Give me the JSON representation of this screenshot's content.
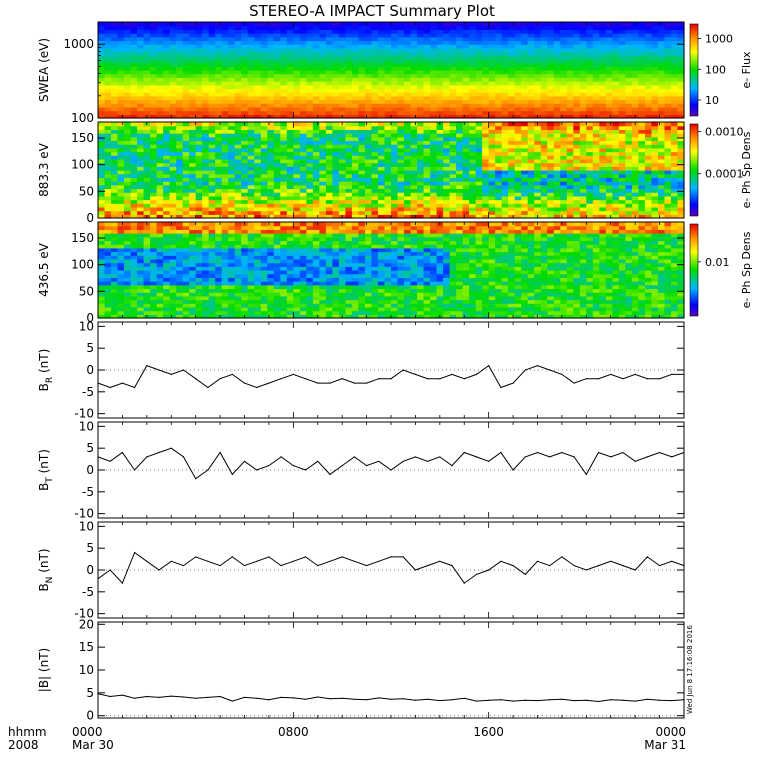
{
  "title": "STEREO-A IMPACT Summary Plot",
  "time_axis": {
    "row1_labels": [
      "hhmm",
      "0000",
      "0800",
      "1600",
      "0000"
    ],
    "row2_labels": [
      "2008",
      "Mar 30",
      "Mar 31"
    ],
    "range_hours": [
      0,
      24
    ],
    "major_ticks_hours": [
      0,
      8,
      16,
      24
    ],
    "minor_step_hours": 1
  },
  "timestamp": "Wed Jun  8 17:16:08 2016",
  "colors": {
    "axes": "#000000",
    "line": "#000000",
    "background": "#ffffff"
  },
  "chart_data": [
    {
      "type": "heatmap",
      "name": "swea",
      "ylabel": "SWEA (eV)",
      "yscale": "log",
      "ylim": [
        100,
        2000
      ],
      "yticks": [
        100,
        1000
      ],
      "ytick_labels": [
        "100",
        "1000"
      ],
      "colorbar": {
        "label": "e- Flux",
        "scale": "log",
        "range": [
          3,
          3000
        ],
        "ticks": [
          10,
          100,
          1000
        ],
        "tick_labels": [
          "10",
          "100",
          "1000"
        ]
      },
      "description_levels": {
        "energy_100_eV": 2500,
        "energy_400_eV": 100,
        "energy_2000_eV": 3
      }
    },
    {
      "type": "heatmap",
      "name": "pad_883",
      "ylabel": "883.3 eV",
      "ylim": [
        0,
        180
      ],
      "yticks": [
        0,
        50,
        100,
        150
      ],
      "ytick_labels": [
        "0",
        "50",
        "100",
        "150"
      ],
      "colorbar": {
        "label": "e- Ph Sp Dens",
        "scale": "log",
        "range": [
          1e-05,
          0.0015
        ],
        "ticks": [
          0.0001,
          0.001
        ],
        "tick_labels": [
          "0.0001",
          "0.0010"
        ]
      }
    },
    {
      "type": "heatmap",
      "name": "pad_436",
      "ylabel": "436.5 eV",
      "ylim": [
        0,
        180
      ],
      "yticks": [
        0,
        50,
        100,
        150
      ],
      "ytick_labels": [
        "0",
        "50",
        "100",
        "150"
      ],
      "colorbar": {
        "label": "e- Ph Sp Dens",
        "scale": "log",
        "range": [
          0.001,
          0.05
        ],
        "ticks": [
          0.01
        ],
        "tick_labels": [
          "0.01"
        ]
      }
    },
    {
      "type": "line",
      "name": "BR",
      "ylabel_main": "B",
      "ylabel_sub": "R",
      "ylabel_unit": "(nT)",
      "ylim": [
        -11,
        11
      ],
      "yticks": [
        -10,
        -5,
        0,
        5,
        10
      ],
      "ytick_labels": [
        "-10",
        "-5",
        "0",
        "5",
        "10"
      ],
      "x": [
        0,
        0.5,
        1,
        1.5,
        2,
        2.5,
        3,
        3.5,
        4,
        4.5,
        5,
        5.5,
        6,
        6.5,
        7,
        7.5,
        8,
        8.5,
        9,
        9.5,
        10,
        10.5,
        11,
        11.5,
        12,
        12.5,
        13,
        13.5,
        14,
        14.5,
        15,
        15.5,
        16,
        16.5,
        17,
        17.5,
        18,
        18.5,
        19,
        19.5,
        20,
        20.5,
        21,
        21.5,
        22,
        22.5,
        23,
        23.5,
        24
      ],
      "y": [
        -3,
        -4,
        -3,
        -4,
        1,
        0,
        -1,
        0,
        -2,
        -4,
        -2,
        -1,
        -3,
        -4,
        -3,
        -2,
        -1,
        -2,
        -3,
        -3,
        -2,
        -3,
        -3,
        -2,
        -2,
        0,
        -1,
        -2,
        -2,
        -1,
        -2,
        -1,
        1,
        -4,
        -3,
        0,
        1,
        0,
        -1,
        -3,
        -2,
        -2,
        -1,
        -2,
        -1,
        -2,
        -2,
        -1,
        -1
      ]
    },
    {
      "type": "line",
      "name": "BT",
      "ylabel_main": "B",
      "ylabel_sub": "T",
      "ylabel_unit": "(nT)",
      "ylim": [
        -11,
        11
      ],
      "yticks": [
        -10,
        -5,
        0,
        5,
        10
      ],
      "ytick_labels": [
        "-10",
        "-5",
        "0",
        "5",
        "10"
      ],
      "x": [
        0,
        0.5,
        1,
        1.5,
        2,
        2.5,
        3,
        3.5,
        4,
        4.5,
        5,
        5.5,
        6,
        6.5,
        7,
        7.5,
        8,
        8.5,
        9,
        9.5,
        10,
        10.5,
        11,
        11.5,
        12,
        12.5,
        13,
        13.5,
        14,
        14.5,
        15,
        15.5,
        16,
        16.5,
        17,
        17.5,
        18,
        18.5,
        19,
        19.5,
        20,
        20.5,
        21,
        21.5,
        22,
        22.5,
        23,
        23.5,
        24
      ],
      "y": [
        3,
        2,
        4,
        0,
        3,
        4,
        5,
        3,
        -2,
        0,
        4,
        -1,
        2,
        0,
        1,
        3,
        1,
        0,
        2,
        -1,
        1,
        3,
        1,
        2,
        0,
        2,
        3,
        2,
        3,
        1,
        4,
        3,
        2,
        4,
        0,
        3,
        4,
        3,
        4,
        3,
        -1,
        4,
        3,
        4,
        2,
        3,
        4,
        3,
        4
      ]
    },
    {
      "type": "line",
      "name": "BN",
      "ylabel_main": "B",
      "ylabel_sub": "N",
      "ylabel_unit": "(nT)",
      "ylim": [
        -11,
        11
      ],
      "yticks": [
        -10,
        -5,
        0,
        5,
        10
      ],
      "ytick_labels": [
        "-10",
        "-5",
        "0",
        "5",
        "10"
      ],
      "x": [
        0,
        0.5,
        1,
        1.5,
        2,
        2.5,
        3,
        3.5,
        4,
        4.5,
        5,
        5.5,
        6,
        6.5,
        7,
        7.5,
        8,
        8.5,
        9,
        9.5,
        10,
        10.5,
        11,
        11.5,
        12,
        12.5,
        13,
        13.5,
        14,
        14.5,
        15,
        15.5,
        16,
        16.5,
        17,
        17.5,
        18,
        18.5,
        19,
        19.5,
        20,
        20.5,
        21,
        21.5,
        22,
        22.5,
        23,
        23.5,
        24
      ],
      "y": [
        -2,
        0,
        -3,
        4,
        2,
        0,
        2,
        1,
        3,
        2,
        1,
        3,
        1,
        2,
        3,
        1,
        2,
        3,
        1,
        2,
        3,
        2,
        1,
        2,
        3,
        3,
        0,
        1,
        2,
        1,
        -3,
        -1,
        0,
        2,
        1,
        -1,
        2,
        1,
        3,
        1,
        0,
        1,
        2,
        1,
        0,
        3,
        1,
        2,
        1
      ]
    },
    {
      "type": "line",
      "name": "Bmag",
      "ylabel_main": "|B|",
      "ylabel_sub": "",
      "ylabel_unit": "(nT)",
      "ylim": [
        -0.5,
        20.5
      ],
      "yticks": [
        0,
        5,
        10,
        15,
        20
      ],
      "ytick_labels": [
        "0",
        "5",
        "10",
        "15",
        "20"
      ],
      "x": [
        0,
        0.5,
        1,
        1.5,
        2,
        2.5,
        3,
        3.5,
        4,
        4.5,
        5,
        5.5,
        6,
        6.5,
        7,
        7.5,
        8,
        8.5,
        9,
        9.5,
        10,
        10.5,
        11,
        11.5,
        12,
        12.5,
        13,
        13.5,
        14,
        14.5,
        15,
        15.5,
        16,
        16.5,
        17,
        17.5,
        18,
        18.5,
        19,
        19.5,
        20,
        20.5,
        21,
        21.5,
        22,
        22.5,
        23,
        23.5,
        24
      ],
      "y": [
        4.8,
        4.2,
        4.5,
        3.8,
        4.2,
        4.0,
        4.3,
        4.1,
        3.8,
        4.0,
        4.2,
        3.2,
        4.0,
        3.8,
        3.5,
        4.0,
        3.9,
        3.6,
        4.1,
        3.7,
        3.8,
        3.6,
        3.5,
        3.9,
        3.6,
        3.7,
        3.4,
        3.6,
        3.3,
        3.5,
        3.8,
        3.2,
        3.4,
        3.5,
        3.2,
        3.4,
        3.3,
        3.5,
        3.6,
        3.3,
        3.4,
        3.1,
        3.5,
        3.4,
        3.2,
        3.6,
        3.4,
        3.3,
        3.5
      ]
    }
  ]
}
